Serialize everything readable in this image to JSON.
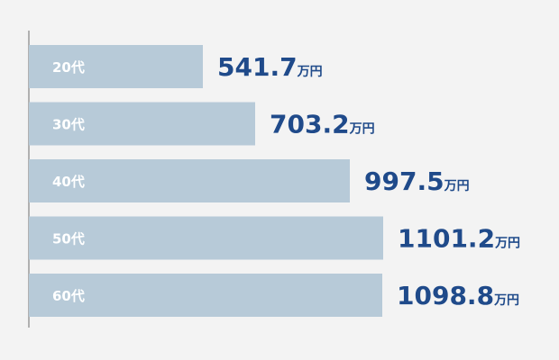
{
  "chart_data": {
    "type": "bar",
    "orientation": "horizontal",
    "categories": [
      "20代",
      "30代",
      "40代",
      "50代",
      "60代"
    ],
    "values": [
      541.7,
      703.2,
      997.5,
      1101.2,
      1098.8
    ],
    "value_labels": [
      "541.7",
      "703.2",
      "997.5",
      "1101.2",
      "1098.8"
    ],
    "unit": "万円",
    "xlim": [
      0,
      1101.2
    ],
    "grid": false,
    "legend": "none",
    "bar_color": "#b7cad8",
    "label_color": "#ffffff",
    "value_color": "#1f4a8a",
    "axis_color": "#9a9a9a",
    "background": "#f3f3f3"
  }
}
